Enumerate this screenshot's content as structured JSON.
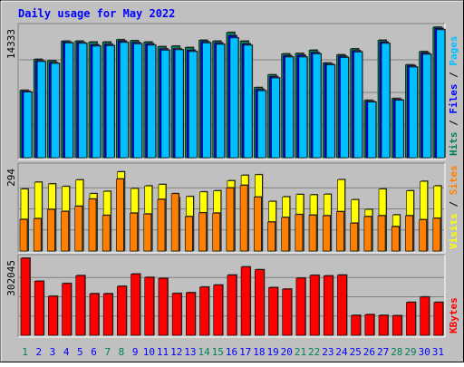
{
  "chart_data": [
    {
      "type": "bar",
      "title": "Daily usage for May 2022",
      "categories": [
        "1",
        "2",
        "3",
        "4",
        "5",
        "6",
        "7",
        "8",
        "9",
        "10",
        "11",
        "12",
        "13",
        "14",
        "15",
        "16",
        "17",
        "18",
        "19",
        "20",
        "21",
        "22",
        "23",
        "24",
        "25",
        "26",
        "27",
        "28",
        "29",
        "30",
        "31"
      ],
      "weekend_categories": [
        "1",
        "7",
        "8",
        "14",
        "15",
        "21",
        "22",
        "28",
        "29"
      ],
      "y_tick_label": "14333",
      "ylim": [
        0,
        14333
      ],
      "legend": [
        "Pages",
        "Files",
        "Hits"
      ],
      "series": [
        {
          "name": "Hits",
          "color": "#00805c",
          "values": [
            7400,
            10800,
            10650,
            12800,
            12800,
            12700,
            12700,
            12950,
            12850,
            12700,
            12200,
            12250,
            12100,
            12900,
            12800,
            13750,
            12800,
            7700,
            9100,
            11400,
            11450,
            11800,
            10400,
            11300,
            11950,
            6300,
            12900,
            6500,
            10200,
            11650,
            14333
          ]
        },
        {
          "name": "Files",
          "color": "#0000ff",
          "values": [
            7300,
            10650,
            10450,
            12700,
            12650,
            12400,
            12450,
            12800,
            12650,
            12500,
            11950,
            11950,
            11800,
            12750,
            12600,
            13400,
            12500,
            7500,
            8900,
            11200,
            11250,
            11550,
            10300,
            11150,
            11750,
            6200,
            12700,
            6400,
            10100,
            11500,
            14200
          ]
        },
        {
          "name": "Pages",
          "color": "#00c0ff",
          "values": [
            7200,
            10550,
            10350,
            12600,
            12550,
            12250,
            12300,
            12650,
            12500,
            12350,
            11800,
            11850,
            11650,
            12600,
            12450,
            13150,
            12350,
            7350,
            8750,
            11050,
            11050,
            11400,
            10200,
            11000,
            11600,
            6100,
            12550,
            6300,
            9950,
            11350,
            14050
          ]
        }
      ]
    },
    {
      "type": "bar",
      "categories": [
        "1",
        "2",
        "3",
        "4",
        "5",
        "6",
        "7",
        "8",
        "9",
        "10",
        "11",
        "12",
        "13",
        "14",
        "15",
        "16",
        "17",
        "18",
        "19",
        "20",
        "21",
        "22",
        "23",
        "24",
        "25",
        "26",
        "27",
        "28",
        "29",
        "30",
        "31"
      ],
      "y_tick_label": "294",
      "ylim": [
        0,
        294
      ],
      "legend": [
        "Sites",
        "Visits"
      ],
      "series": [
        {
          "name": "Visits",
          "color": "#ffff00",
          "values": [
            216,
            240,
            234,
            225,
            248,
            200,
            208,
            276,
            218,
            227,
            232,
            186,
            190,
            206,
            210,
            245,
            264,
            266,
            173,
            189,
            197,
            196,
            198,
            249,
            179,
            145,
            216,
            126,
            210,
            243,
            227
          ]
        },
        {
          "name": "Sites",
          "color": "#ff8000",
          "values": [
            110,
            113,
            145,
            138,
            156,
            181,
            124,
            251,
            132,
            129,
            180,
            200,
            120,
            133,
            132,
            220,
            229,
            188,
            101,
            117,
            127,
            125,
            123,
            137,
            97,
            120,
            123,
            85,
            123,
            109,
            114
          ]
        }
      ]
    },
    {
      "type": "bar",
      "categories": [
        "1",
        "2",
        "3",
        "4",
        "5",
        "6",
        "7",
        "8",
        "9",
        "10",
        "11",
        "12",
        "13",
        "14",
        "15",
        "16",
        "17",
        "18",
        "19",
        "20",
        "21",
        "22",
        "23",
        "24",
        "25",
        "26",
        "27",
        "28",
        "29",
        "30",
        "31"
      ],
      "y_tick_label": "302045",
      "ylim": [
        0,
        302045
      ],
      "legend": [
        "KBytes"
      ],
      "series": [
        {
          "name": "KBytes",
          "color": "#ff0000",
          "values": [
            302045,
            212000,
            153000,
            203000,
            234000,
            163000,
            163000,
            192000,
            240000,
            227000,
            223000,
            164000,
            167000,
            189000,
            197000,
            236000,
            268000,
            257000,
            187000,
            181000,
            224000,
            235000,
            233000,
            236000,
            78000,
            81000,
            78000,
            77000,
            129000,
            150000,
            129000
          ]
        }
      ]
    }
  ],
  "colors": {
    "background": "#c0c0c0",
    "title": "#0000ff",
    "grid": "#808080",
    "weekday_label": "#0000ff",
    "weekend_label": "#00805c",
    "tick_label": "#000000",
    "separator": "#000000"
  }
}
